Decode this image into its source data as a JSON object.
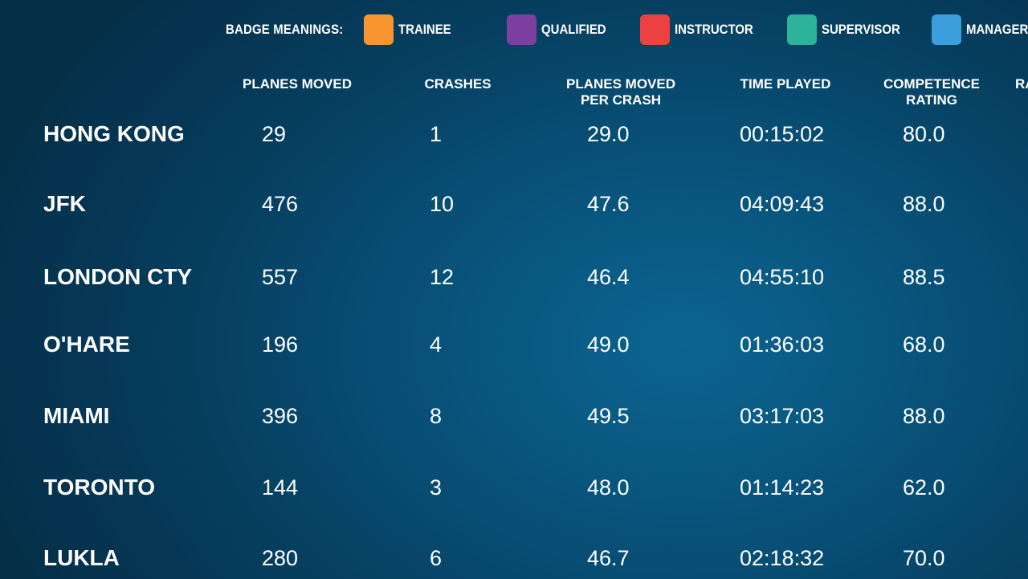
{
  "legend": {
    "title": "BADGE MEANINGS:",
    "badges": [
      {
        "label": "TRAINEE",
        "color": "#f7962f"
      },
      {
        "label": "QUALIFIED",
        "color": "#7b40a0"
      },
      {
        "label": "INSTRUCTOR",
        "color": "#eb4140"
      },
      {
        "label": "SUPERVISOR",
        "color": "#2eb39a"
      },
      {
        "label": "MANAGER",
        "color": "#3a9fdc"
      }
    ]
  },
  "columns": {
    "planes_moved": "PLANES MOVED",
    "crashes": "CRASHES",
    "per_crash": "PLANES MOVED\nPER CRASH",
    "time_played": "TIME PLAYED",
    "competence": "COMPETENCE\nRATING",
    "cut_off": "RA"
  },
  "rows": [
    {
      "name": "HONG KONG",
      "planes_moved": "29",
      "crashes": "1",
      "per_crash": "29.0",
      "time_played": "00:15:02",
      "competence": "80.0"
    },
    {
      "name": "JFK",
      "planes_moved": "476",
      "crashes": "10",
      "per_crash": "47.6",
      "time_played": "04:09:43",
      "competence": "88.0"
    },
    {
      "name": "LONDON CTY",
      "planes_moved": "557",
      "crashes": "12",
      "per_crash": "46.4",
      "time_played": "04:55:10",
      "competence": "88.5"
    },
    {
      "name": "O'HARE",
      "planes_moved": "196",
      "crashes": "4",
      "per_crash": "49.0",
      "time_played": "01:36:03",
      "competence": "68.0"
    },
    {
      "name": "MIAMI",
      "planes_moved": "396",
      "crashes": "8",
      "per_crash": "49.5",
      "time_played": "03:17:03",
      "competence": "88.0"
    },
    {
      "name": "TORONTO",
      "planes_moved": "144",
      "crashes": "3",
      "per_crash": "48.0",
      "time_played": "01:14:23",
      "competence": "62.0"
    },
    {
      "name": "LUKLA",
      "planes_moved": "280",
      "crashes": "6",
      "per_crash": "46.7",
      "time_played": "02:18:32",
      "competence": "70.0"
    }
  ]
}
